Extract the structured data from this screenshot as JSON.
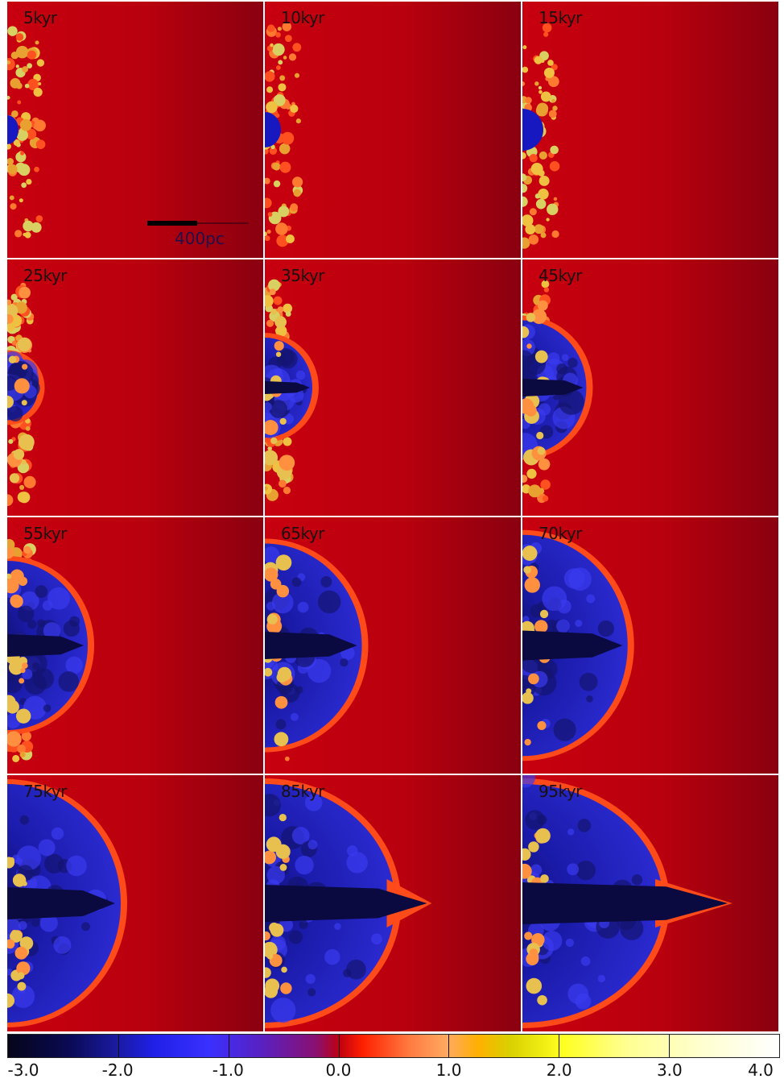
{
  "panels": [
    {
      "label": "5kyr",
      "t": 5
    },
    {
      "label": "10kyr",
      "t": 10
    },
    {
      "label": "15kyr",
      "t": 15
    },
    {
      "label": "25kyr",
      "t": 25
    },
    {
      "label": "35kyr",
      "t": 35
    },
    {
      "label": "45kyr",
      "t": 45
    },
    {
      "label": "55kyr",
      "t": 55
    },
    {
      "label": "65kyr",
      "t": 65
    },
    {
      "label": "70kyr",
      "t": 70
    },
    {
      "label": "75kyr",
      "t": 75
    },
    {
      "label": "85kyr",
      "t": 85
    },
    {
      "label": "95kyr",
      "t": 95
    }
  ],
  "scale_bar": {
    "label": "400pc"
  },
  "colorbar": {
    "ticks": [
      "-3.0",
      "-2.0",
      "-1.0",
      "0.0",
      "1.0",
      "2.0",
      "3.0",
      "4.0"
    ],
    "min": -3.0,
    "max": 4.0
  },
  "colors": {
    "ambient": "#b8000e",
    "ambient_dark": "#8a000f",
    "shell": "#ff4a1a",
    "bubble": "#2a2ad0",
    "bubble_dark": "#0a0a40",
    "clumps": "#e8a030"
  }
}
